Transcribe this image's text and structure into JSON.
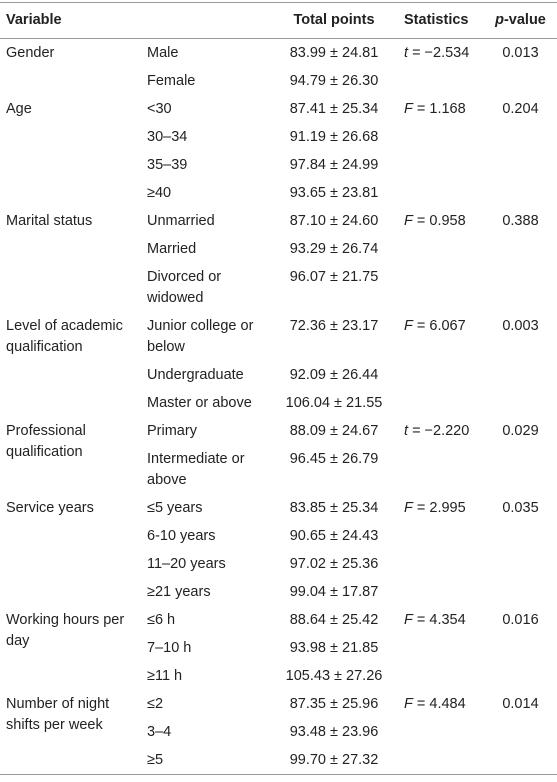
{
  "table": {
    "header": {
      "variable": "Variable",
      "total": "Total points",
      "statistics": "Statistics",
      "p_symbol": "p",
      "p_rest": "-value"
    },
    "groups": [
      {
        "variable": "Gender",
        "stat_symbol": "t",
        "stat_value": "= −2.534",
        "p_value": "0.013",
        "levels": [
          {
            "label": "Male",
            "total": "83.99 ± 24.81"
          },
          {
            "label": "Female",
            "total": "94.79 ± 26.30"
          }
        ]
      },
      {
        "variable": "Age",
        "stat_symbol": "F",
        "stat_value": "= 1.168",
        "p_value": "0.204",
        "levels": [
          {
            "label": "<30",
            "total": "87.41 ± 25.34"
          },
          {
            "label": "30–34",
            "total": "91.19 ± 26.68"
          },
          {
            "label": "35–39",
            "total": "97.84 ± 24.99"
          },
          {
            "label": "≥40",
            "total": "93.65 ± 23.81"
          }
        ]
      },
      {
        "variable": "Marital status",
        "stat_symbol": "F",
        "stat_value": "= 0.958",
        "p_value": "0.388",
        "levels": [
          {
            "label": "Unmarried",
            "total": "87.10 ± 24.60"
          },
          {
            "label": "Married",
            "total": "93.29 ± 26.74"
          },
          {
            "label": "Divorced or widowed",
            "total": "96.07 ± 21.75"
          }
        ]
      },
      {
        "variable": "Level of academic qualification",
        "stat_symbol": "F",
        "stat_value": "= 6.067",
        "p_value": "0.003",
        "levels": [
          {
            "label": "Junior college or below",
            "total": "72.36 ± 23.17"
          },
          {
            "label": "Undergraduate",
            "total": "92.09 ± 26.44"
          },
          {
            "label": "Master or above",
            "total": "106.04 ± 21.55"
          }
        ]
      },
      {
        "variable": "Professional qualification",
        "stat_symbol": "t",
        "stat_value": "= −2.220",
        "p_value": "0.029",
        "levels": [
          {
            "label": "Primary",
            "total": "88.09 ± 24.67"
          },
          {
            "label": "Intermediate or above",
            "total": "96.45 ± 26.79"
          }
        ]
      },
      {
        "variable": "Service years",
        "stat_symbol": "F",
        "stat_value": "= 2.995",
        "p_value": "0.035",
        "levels": [
          {
            "label": "≤5 years",
            "total": "83.85 ± 25.34"
          },
          {
            "label": "6-10 years",
            "total": "90.65 ± 24.43"
          },
          {
            "label": "11–20 years",
            "total": "97.02 ± 25.36"
          },
          {
            "label": "≥21 years",
            "total": "99.04 ± 17.87"
          }
        ]
      },
      {
        "variable": "Working hours per day",
        "stat_symbol": "F",
        "stat_value": "= 4.354",
        "p_value": "0.016",
        "levels": [
          {
            "label": "≤6 h",
            "total": "88.64 ± 25.42"
          },
          {
            "label": "7–10 h",
            "total": "93.98 ± 21.85"
          },
          {
            "label": "≥11 h",
            "total": "105.43 ± 27.26"
          }
        ]
      },
      {
        "variable": "Number of night shifts per week",
        "stat_symbol": "F",
        "stat_value": "= 4.484",
        "p_value": "0.014",
        "levels": [
          {
            "label": "≤2",
            "total": "87.35 ± 25.96"
          },
          {
            "label": "3–4",
            "total": "93.48 ± 23.96"
          },
          {
            "label": "≥5",
            "total": "99.70 ± 27.32"
          }
        ]
      }
    ]
  }
}
